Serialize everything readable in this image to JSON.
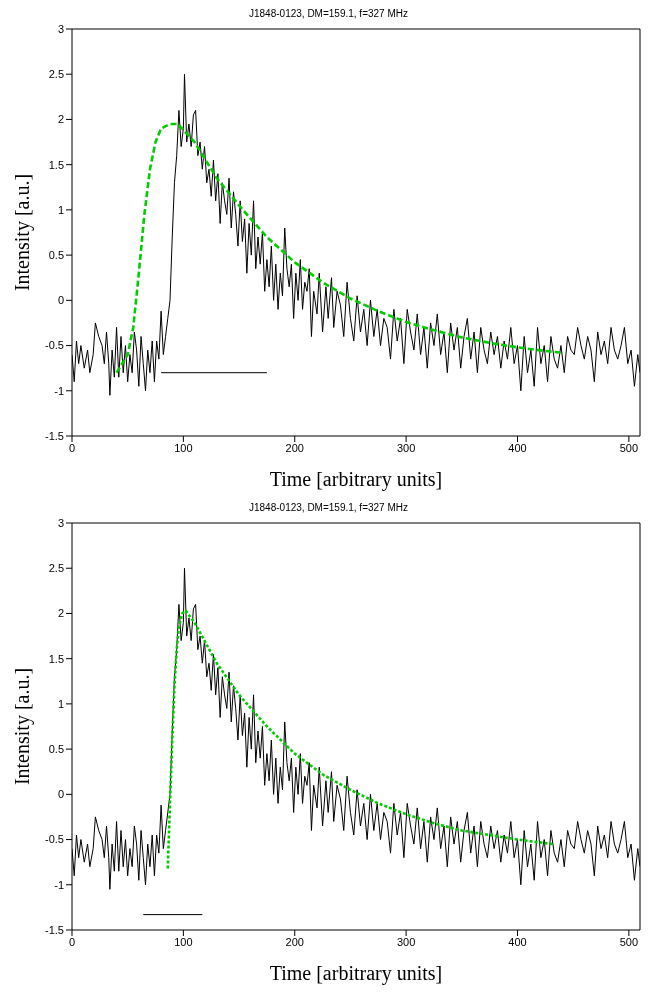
{
  "chart_data": [
    {
      "type": "line",
      "title": "J1848-0123, DM=159.1, f=327 MHz",
      "xlabel": "Time [arbitrary units]",
      "ylabel": "Intensity [a.u.]",
      "xlim": [
        0,
        510
      ],
      "xticks": [
        0,
        100,
        200,
        300,
        400,
        500
      ],
      "ylim": [
        -1.5,
        3
      ],
      "yticks": [
        -1.5,
        -1,
        -0.5,
        0,
        0.5,
        1,
        1.5,
        2,
        2.5,
        3
      ],
      "grid": false,
      "legend": false,
      "marker": "none",
      "series": [
        {
          "color": "#000000",
          "line_style": "solid",
          "x": [
            0,
            2,
            4,
            6,
            8,
            11,
            14,
            16,
            19,
            21,
            24,
            27,
            29,
            31,
            33,
            34,
            36,
            38,
            40,
            42,
            44,
            46,
            48,
            50,
            52,
            54,
            56,
            58,
            60,
            62,
            64,
            66,
            68,
            70,
            72,
            74,
            76,
            78,
            80,
            82,
            84,
            86,
            88,
            90,
            92,
            94,
            96,
            98,
            100,
            101,
            103,
            105,
            107,
            109,
            111,
            113,
            115,
            117,
            119,
            121,
            123,
            125,
            127,
            129,
            131,
            133,
            135,
            137,
            139,
            141,
            143,
            145,
            147,
            149,
            151,
            153,
            155,
            157,
            159,
            161,
            163,
            165,
            167,
            169,
            171,
            173,
            175,
            177,
            179,
            181,
            183,
            185,
            187,
            189,
            191,
            193,
            195,
            197,
            199,
            201,
            203,
            205,
            207,
            209,
            211,
            213,
            215,
            217,
            220,
            222,
            225,
            228,
            230,
            233,
            235,
            238,
            241,
            244,
            247,
            250,
            253,
            256,
            259,
            262,
            265,
            268,
            271,
            274,
            277,
            280,
            283,
            286,
            289,
            292,
            295,
            298,
            301,
            304,
            307,
            310,
            313,
            316,
            319,
            322,
            325,
            328,
            331,
            334,
            337,
            340,
            343,
            346,
            349,
            352,
            355,
            358,
            361,
            364,
            367,
            370,
            373,
            376,
            379,
            382,
            385,
            388,
            391,
            394,
            397,
            400,
            403,
            406,
            409,
            412,
            415,
            418,
            421,
            424,
            427,
            430,
            433,
            436,
            439,
            442,
            445,
            448,
            451,
            454,
            457,
            460,
            463,
            466,
            469,
            472,
            475,
            478,
            481,
            484,
            487,
            490,
            493,
            496,
            499,
            502,
            505,
            508,
            510
          ],
          "values": [
            -0.6,
            -0.9,
            -0.45,
            -0.7,
            -0.5,
            -0.75,
            -0.55,
            -0.8,
            -0.6,
            -0.25,
            -0.4,
            -0.5,
            -0.7,
            -0.35,
            -0.7,
            -1.05,
            -0.55,
            -0.85,
            -0.3,
            -0.85,
            -0.4,
            -0.8,
            -0.5,
            -0.9,
            -0.6,
            -0.8,
            -0.35,
            -0.55,
            -0.95,
            -0.4,
            -0.7,
            -1.0,
            -0.55,
            -0.8,
            -0.45,
            -0.9,
            -0.45,
            -0.65,
            -0.12,
            -0.6,
            -0.4,
            -0.2,
            0.0,
            0.7,
            1.3,
            1.6,
            2.1,
            1.7,
            1.9,
            2.5,
            1.75,
            1.95,
            1.7,
            2.05,
            2.1,
            1.6,
            1.75,
            1.45,
            1.7,
            1.3,
            1.45,
            1.15,
            1.55,
            1.1,
            1.4,
            0.85,
            1.3,
            1.1,
            0.95,
            1.35,
            0.8,
            1.2,
            0.95,
            0.6,
            1.1,
            0.65,
            0.9,
            0.3,
            0.85,
            0.5,
            1.1,
            0.35,
            0.7,
            0.4,
            0.75,
            0.1,
            0.45,
            0.15,
            0.6,
            0.0,
            0.4,
            -0.1,
            0.3,
            0.05,
            0.8,
            0.35,
            0.15,
            0.4,
            -0.2,
            0.3,
            0.0,
            0.45,
            -0.1,
            0.2,
            0.1,
            0.35,
            -0.4,
            0.1,
            -0.15,
            0.3,
            -0.35,
            0.15,
            -0.2,
            0.25,
            -0.3,
            0.1,
            -0.05,
            -0.4,
            0.2,
            -0.2,
            -0.45,
            0.05,
            -0.35,
            -0.1,
            -0.5,
            0.0,
            -0.4,
            -0.1,
            -0.5,
            -0.2,
            -0.3,
            -0.65,
            -0.1,
            -0.45,
            -0.2,
            -0.7,
            -0.1,
            -0.35,
            -0.55,
            -0.15,
            -0.6,
            -0.3,
            -0.75,
            -0.25,
            -0.5,
            -0.15,
            -0.6,
            -0.35,
            -0.8,
            -0.25,
            -0.55,
            -0.3,
            -0.75,
            -0.4,
            -0.2,
            -0.65,
            -0.35,
            -0.8,
            -0.3,
            -0.55,
            -0.7,
            -0.35,
            -0.6,
            -0.4,
            -0.75,
            -0.45,
            -0.65,
            -0.3,
            -0.7,
            -0.5,
            -1.0,
            -0.4,
            -0.8,
            -0.55,
            -0.95,
            -0.3,
            -0.7,
            -0.5,
            -0.9,
            -0.4,
            -0.65,
            -0.75,
            -0.5,
            -0.8,
            -0.4,
            -0.55,
            -0.6,
            -0.3,
            -0.5,
            -0.65,
            -0.4,
            -0.55,
            -0.9,
            -0.35,
            -0.6,
            -0.45,
            -0.7,
            -0.3,
            -0.55,
            -0.65,
            -0.5,
            -0.3,
            -0.7,
            -0.55,
            -0.95,
            -0.6,
            -0.8
          ]
        },
        {
          "color": "#00cc00",
          "line_style": "dashed",
          "x": [
            40,
            50,
            55,
            60,
            65,
            70,
            75,
            80,
            88,
            95,
            110,
            130,
            150,
            175,
            200,
            225,
            250,
            275,
            300,
            325,
            350,
            375,
            400,
            425,
            440
          ],
          "values": [
            -0.8,
            -0.6,
            -0.3,
            0.3,
            0.95,
            1.45,
            1.75,
            1.9,
            1.95,
            1.95,
            1.75,
            1.35,
            1.05,
            0.7,
            0.42,
            0.2,
            0.02,
            -0.12,
            -0.24,
            -0.33,
            -0.41,
            -0.47,
            -0.52,
            -0.56,
            -0.58
          ]
        },
        {
          "color": "#000000",
          "line_style": "solid",
          "x": [
            80,
            175
          ],
          "values": [
            -0.8,
            -0.8
          ]
        }
      ]
    },
    {
      "type": "line",
      "title": "J1848-0123, DM=159.1, f=327 MHz",
      "xlabel": "Time [arbitrary units]",
      "ylabel": "Intensity [a.u.]",
      "xlim": [
        0,
        510
      ],
      "xticks": [
        0,
        100,
        200,
        300,
        400,
        500
      ],
      "ylim": [
        -1.5,
        3
      ],
      "yticks": [
        -1.5,
        -1,
        -0.5,
        0,
        0.5,
        1,
        1.5,
        2,
        2.5,
        3
      ],
      "grid": false,
      "legend": false,
      "marker": "none",
      "series": [
        {
          "color": "#000000",
          "line_style": "solid",
          "x": [
            0,
            2,
            4,
            6,
            8,
            11,
            14,
            16,
            19,
            21,
            24,
            27,
            29,
            31,
            33,
            34,
            36,
            38,
            40,
            42,
            44,
            46,
            48,
            50,
            52,
            54,
            56,
            58,
            60,
            62,
            64,
            66,
            68,
            70,
            72,
            74,
            76,
            78,
            80,
            82,
            84,
            86,
            88,
            90,
            92,
            94,
            96,
            98,
            100,
            101,
            103,
            105,
            107,
            109,
            111,
            113,
            115,
            117,
            119,
            121,
            123,
            125,
            127,
            129,
            131,
            133,
            135,
            137,
            139,
            141,
            143,
            145,
            147,
            149,
            151,
            153,
            155,
            157,
            159,
            161,
            163,
            165,
            167,
            169,
            171,
            173,
            175,
            177,
            179,
            181,
            183,
            185,
            187,
            189,
            191,
            193,
            195,
            197,
            199,
            201,
            203,
            205,
            207,
            209,
            211,
            213,
            215,
            217,
            220,
            222,
            225,
            228,
            230,
            233,
            235,
            238,
            241,
            244,
            247,
            250,
            253,
            256,
            259,
            262,
            265,
            268,
            271,
            274,
            277,
            280,
            283,
            286,
            289,
            292,
            295,
            298,
            301,
            304,
            307,
            310,
            313,
            316,
            319,
            322,
            325,
            328,
            331,
            334,
            337,
            340,
            343,
            346,
            349,
            352,
            355,
            358,
            361,
            364,
            367,
            370,
            373,
            376,
            379,
            382,
            385,
            388,
            391,
            394,
            397,
            400,
            403,
            406,
            409,
            412,
            415,
            418,
            421,
            424,
            427,
            430,
            433,
            436,
            439,
            442,
            445,
            448,
            451,
            454,
            457,
            460,
            463,
            466,
            469,
            472,
            475,
            478,
            481,
            484,
            487,
            490,
            493,
            496,
            499,
            502,
            505,
            508,
            510
          ],
          "values": [
            -0.6,
            -0.9,
            -0.45,
            -0.7,
            -0.5,
            -0.75,
            -0.55,
            -0.8,
            -0.6,
            -0.25,
            -0.4,
            -0.5,
            -0.7,
            -0.35,
            -0.7,
            -1.05,
            -0.55,
            -0.85,
            -0.3,
            -0.85,
            -0.4,
            -0.8,
            -0.5,
            -0.9,
            -0.6,
            -0.8,
            -0.35,
            -0.55,
            -0.95,
            -0.4,
            -0.7,
            -1.0,
            -0.55,
            -0.8,
            -0.45,
            -0.9,
            -0.45,
            -0.65,
            -0.12,
            -0.6,
            -0.4,
            -0.2,
            0.0,
            0.7,
            1.3,
            1.6,
            2.1,
            1.7,
            1.9,
            2.5,
            1.75,
            1.95,
            1.7,
            2.05,
            2.1,
            1.6,
            1.75,
            1.45,
            1.7,
            1.3,
            1.45,
            1.15,
            1.55,
            1.1,
            1.4,
            0.85,
            1.3,
            1.1,
            0.95,
            1.35,
            0.8,
            1.2,
            0.95,
            0.6,
            1.1,
            0.65,
            0.9,
            0.3,
            0.85,
            0.5,
            1.1,
            0.35,
            0.7,
            0.4,
            0.75,
            0.1,
            0.45,
            0.15,
            0.6,
            0.0,
            0.4,
            -0.1,
            0.3,
            0.05,
            0.8,
            0.35,
            0.15,
            0.4,
            -0.2,
            0.3,
            0.0,
            0.45,
            -0.1,
            0.2,
            0.1,
            0.35,
            -0.4,
            0.1,
            -0.15,
            0.3,
            -0.35,
            0.15,
            -0.2,
            0.25,
            -0.3,
            0.1,
            -0.05,
            -0.4,
            0.2,
            -0.2,
            -0.45,
            0.05,
            -0.35,
            -0.1,
            -0.5,
            0.0,
            -0.4,
            -0.1,
            -0.5,
            -0.2,
            -0.3,
            -0.65,
            -0.1,
            -0.45,
            -0.2,
            -0.7,
            -0.1,
            -0.35,
            -0.55,
            -0.15,
            -0.6,
            -0.3,
            -0.75,
            -0.25,
            -0.5,
            -0.15,
            -0.6,
            -0.35,
            -0.8,
            -0.25,
            -0.55,
            -0.3,
            -0.75,
            -0.4,
            -0.2,
            -0.65,
            -0.35,
            -0.8,
            -0.3,
            -0.55,
            -0.7,
            -0.35,
            -0.6,
            -0.4,
            -0.75,
            -0.45,
            -0.65,
            -0.3,
            -0.7,
            -0.5,
            -1.0,
            -0.4,
            -0.8,
            -0.55,
            -0.95,
            -0.3,
            -0.7,
            -0.5,
            -0.9,
            -0.4,
            -0.65,
            -0.75,
            -0.5,
            -0.8,
            -0.4,
            -0.55,
            -0.6,
            -0.3,
            -0.5,
            -0.65,
            -0.4,
            -0.55,
            -0.9,
            -0.35,
            -0.6,
            -0.45,
            -0.7,
            -0.3,
            -0.55,
            -0.65,
            -0.5,
            -0.3,
            -0.7,
            -0.55,
            -0.95,
            -0.6,
            -0.8
          ]
        },
        {
          "color": "#00cc00",
          "line_style": "dotted",
          "x": [
            86,
            88,
            90,
            92,
            94,
            96,
            99,
            102,
            110,
            130,
            150,
            175,
            200,
            225,
            250,
            275,
            300,
            325,
            350,
            375,
            400,
            432
          ],
          "values": [
            -0.82,
            -0.1,
            0.6,
            1.2,
            1.6,
            1.85,
            2.0,
            2.03,
            1.9,
            1.45,
            1.1,
            0.75,
            0.45,
            0.22,
            0.05,
            -0.1,
            -0.22,
            -0.32,
            -0.4,
            -0.45,
            -0.5,
            -0.55
          ]
        },
        {
          "color": "#000000",
          "line_style": "solid",
          "x": [
            64,
            117
          ],
          "values": [
            -1.33,
            -1.33
          ]
        }
      ]
    }
  ]
}
